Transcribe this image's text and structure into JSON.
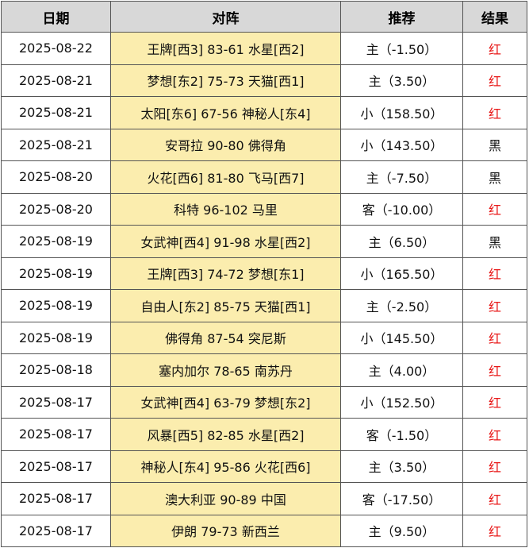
{
  "headers": {
    "date": "日期",
    "match": "对阵",
    "pick": "推荐",
    "result": "结果"
  },
  "colors": {
    "header_bg": "#d8d8d8",
    "match_bg": "#fbedae",
    "red": "#e81717",
    "black": "#111111"
  },
  "rows": [
    {
      "date": "2025-08-22",
      "match": "王牌[西3] 83-61 水星[西2]",
      "pick": "主（-1.50）",
      "result": "红"
    },
    {
      "date": "2025-08-21",
      "match": "梦想[东2] 75-73 天猫[西1]",
      "pick": "主（3.50）",
      "result": "红"
    },
    {
      "date": "2025-08-21",
      "match": "太阳[东6] 67-56 神秘人[东4]",
      "pick": "小（158.50）",
      "result": "红"
    },
    {
      "date": "2025-08-21",
      "match": "安哥拉 90-80 佛得角",
      "pick": "小（143.50）",
      "result": "黑"
    },
    {
      "date": "2025-08-20",
      "match": "火花[西6] 81-80 飞马[西7]",
      "pick": "主（-7.50）",
      "result": "黑"
    },
    {
      "date": "2025-08-20",
      "match": "科特 96-102 马里",
      "pick": "客（-10.00）",
      "result": "红"
    },
    {
      "date": "2025-08-19",
      "match": "女武神[西4] 91-98 水星[西2]",
      "pick": "主（6.50）",
      "result": "黑"
    },
    {
      "date": "2025-08-19",
      "match": "王牌[西3] 74-72 梦想[东1]",
      "pick": "小（165.50）",
      "result": "红"
    },
    {
      "date": "2025-08-19",
      "match": "自由人[东2] 85-75 天猫[西1]",
      "pick": "主（-2.50）",
      "result": "红"
    },
    {
      "date": "2025-08-19",
      "match": "佛得角 87-54 突尼斯",
      "pick": "小（145.50）",
      "result": "红"
    },
    {
      "date": "2025-08-18",
      "match": "塞内加尔 78-65 南苏丹",
      "pick": "主（4.00）",
      "result": "红"
    },
    {
      "date": "2025-08-17",
      "match": "女武神[西4] 63-79 梦想[东2]",
      "pick": "小（152.50）",
      "result": "红"
    },
    {
      "date": "2025-08-17",
      "match": "风暴[西5] 82-85 水星[西2]",
      "pick": "客（-1.50）",
      "result": "红"
    },
    {
      "date": "2025-08-17",
      "match": "神秘人[东4] 95-86 火花[西6]",
      "pick": "主（3.50）",
      "result": "红"
    },
    {
      "date": "2025-08-17",
      "match": "澳大利亚 90-89 中国",
      "pick": "客（-17.50）",
      "result": "红"
    },
    {
      "date": "2025-08-17",
      "match": "伊朗 79-73 新西兰",
      "pick": "主（9.50）",
      "result": "红"
    }
  ]
}
